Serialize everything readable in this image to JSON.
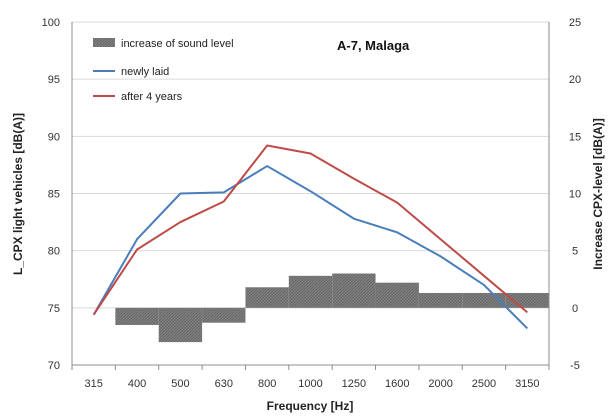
{
  "chart_data": {
    "type": "line",
    "title": "",
    "annotation": "A-7, Malaga",
    "xlabel": "Frequency [Hz]",
    "ylabel": "L_CPX light vehicles [dB(A)]",
    "y2label": "Increase CPX-level [dB(A)]",
    "categories": [
      "315",
      "400",
      "500",
      "630",
      "800",
      "1000",
      "1250",
      "1600",
      "2000",
      "2500",
      "3150"
    ],
    "ylim": [
      70,
      100
    ],
    "yticks": [
      "70",
      "75",
      "80",
      "85",
      "90",
      "95",
      "100"
    ],
    "y2lim": [
      -5,
      25
    ],
    "y2ticks": [
      "-5",
      "0",
      "5",
      "10",
      "15",
      "20",
      "25"
    ],
    "grid": "horizontal",
    "legend_position": "top-left",
    "legend": [
      "increase of sound level",
      "newly laid",
      "after 4 years"
    ],
    "series": [
      {
        "name": "newly laid",
        "kind": "line",
        "axis": "left",
        "color": "#4a7ebb",
        "values": [
          74.4,
          81.0,
          85.0,
          85.1,
          87.4,
          85.2,
          82.8,
          81.6,
          79.5,
          77.0,
          73.2
        ]
      },
      {
        "name": "after 4 years",
        "kind": "line",
        "axis": "left",
        "color": "#be4b48",
        "values": [
          74.4,
          80.1,
          82.5,
          84.3,
          89.2,
          88.5,
          86.3,
          84.2,
          81.0,
          77.8,
          74.6
        ]
      },
      {
        "name": "increase of sound level",
        "kind": "bar",
        "axis": "right",
        "color": "#808080",
        "values": [
          0,
          -1.5,
          -3.0,
          -1.3,
          1.8,
          2.8,
          3.0,
          2.2,
          1.3,
          1.3,
          1.3
        ]
      }
    ]
  }
}
